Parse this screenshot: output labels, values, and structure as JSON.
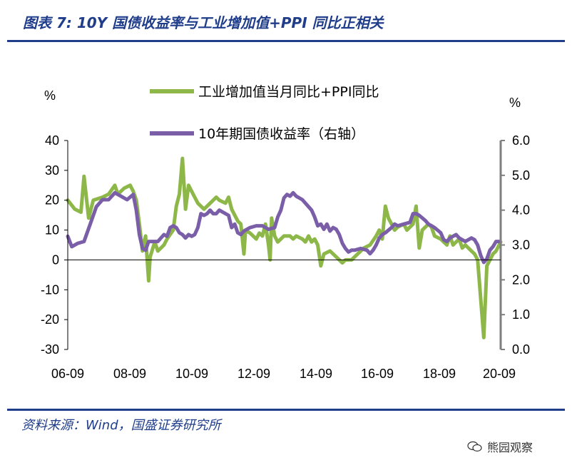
{
  "figure": {
    "title": "图表 7:  10Y 国债收益率与工业增加值+PPI 同比正相关",
    "source": "资料来源：Wind，国盛证券研究所",
    "watermark": "熊园观察",
    "watermark_icon": "wechat-logo-icon"
  },
  "chart_data": {
    "type": "line",
    "title": "",
    "left_axis": {
      "unit": "%",
      "min": -30,
      "max": 40,
      "ticks": [
        "40",
        "30",
        "20",
        "10",
        "0",
        "-10",
        "-20",
        "-30"
      ]
    },
    "right_axis": {
      "unit": "%",
      "min": 0.0,
      "max": 6.0,
      "ticks": [
        "6.0",
        "5.0",
        "4.0",
        "3.0",
        "2.0",
        "1.0",
        "0.0"
      ]
    },
    "x_ticks": [
      "06-09",
      "08-09",
      "10-09",
      "12-09",
      "14-09",
      "16-09",
      "18-09",
      "20-09"
    ],
    "legend_position": "top-center",
    "series": [
      {
        "name": "工业增加值当月同比+PPI同比",
        "axis": "left",
        "color": "#8db849",
        "points": [
          [
            2006.67,
            20
          ],
          [
            2006.9,
            17
          ],
          [
            2007.1,
            16
          ],
          [
            2007.2,
            28
          ],
          [
            2007.35,
            14
          ],
          [
            2007.5,
            20
          ],
          [
            2007.8,
            21
          ],
          [
            2008.0,
            22
          ],
          [
            2008.2,
            25
          ],
          [
            2008.3,
            22
          ],
          [
            2008.5,
            24
          ],
          [
            2008.7,
            25
          ],
          [
            2008.8,
            23
          ],
          [
            2008.9,
            20
          ],
          [
            2009.0,
            12
          ],
          [
            2009.1,
            3
          ],
          [
            2009.2,
            8
          ],
          [
            2009.3,
            -7
          ],
          [
            2009.35,
            1
          ],
          [
            2009.5,
            6
          ],
          [
            2009.6,
            3
          ],
          [
            2009.8,
            5
          ],
          [
            2009.9,
            7
          ],
          [
            2010.1,
            10
          ],
          [
            2010.2,
            18
          ],
          [
            2010.3,
            22
          ],
          [
            2010.4,
            34
          ],
          [
            2010.5,
            17
          ],
          [
            2010.6,
            25
          ],
          [
            2010.8,
            21
          ],
          [
            2010.9,
            19
          ],
          [
            2011.1,
            17
          ],
          [
            2011.3,
            19
          ],
          [
            2011.5,
            21
          ],
          [
            2011.6,
            20
          ],
          [
            2011.8,
            19
          ],
          [
            2011.9,
            21
          ],
          [
            2012.0,
            17
          ],
          [
            2012.2,
            13
          ],
          [
            2012.3,
            12
          ],
          [
            2012.4,
            2
          ],
          [
            2012.45,
            10
          ],
          [
            2012.6,
            9
          ],
          [
            2012.8,
            7
          ],
          [
            2012.9,
            9
          ],
          [
            2013.0,
            8
          ],
          [
            2013.1,
            12
          ],
          [
            2013.2,
            5
          ],
          [
            2013.25,
            0
          ],
          [
            2013.3,
            14
          ],
          [
            2013.4,
            8
          ],
          [
            2013.5,
            6
          ],
          [
            2013.7,
            8
          ],
          [
            2013.9,
            8
          ],
          [
            2014.0,
            7
          ],
          [
            2014.1,
            8
          ],
          [
            2014.3,
            7
          ],
          [
            2014.4,
            6
          ],
          [
            2014.5,
            8
          ],
          [
            2014.6,
            6
          ],
          [
            2014.7,
            7
          ],
          [
            2014.8,
            5
          ],
          [
            2014.9,
            -2
          ],
          [
            2015.0,
            2
          ],
          [
            2015.2,
            3
          ],
          [
            2015.4,
            1
          ],
          [
            2015.6,
            -1
          ],
          [
            2015.7,
            0
          ],
          [
            2015.9,
            0
          ],
          [
            2016.0,
            1
          ],
          [
            2016.1,
            2
          ],
          [
            2016.3,
            4
          ],
          [
            2016.5,
            5
          ],
          [
            2016.7,
            8
          ],
          [
            2016.8,
            10
          ],
          [
            2016.9,
            7
          ],
          [
            2017.0,
            18
          ],
          [
            2017.1,
            14
          ],
          [
            2017.2,
            12
          ],
          [
            2017.3,
            10
          ],
          [
            2017.4,
            11
          ],
          [
            2017.6,
            12
          ],
          [
            2017.7,
            10
          ],
          [
            2017.8,
            11
          ],
          [
            2017.9,
            12
          ],
          [
            2018.0,
            18
          ],
          [
            2018.1,
            4
          ],
          [
            2018.2,
            10
          ],
          [
            2018.4,
            12
          ],
          [
            2018.5,
            11
          ],
          [
            2018.6,
            8
          ],
          [
            2018.8,
            7
          ],
          [
            2018.9,
            6
          ],
          [
            2019.0,
            5
          ],
          [
            2019.1,
            8
          ],
          [
            2019.2,
            5
          ],
          [
            2019.4,
            7
          ],
          [
            2019.5,
            4
          ],
          [
            2019.6,
            5
          ],
          [
            2019.8,
            3
          ],
          [
            2019.9,
            2
          ],
          [
            2020.0,
            0
          ],
          [
            2020.1,
            -13
          ],
          [
            2020.2,
            -26
          ],
          [
            2020.3,
            -2
          ],
          [
            2020.5,
            2
          ],
          [
            2020.6,
            3
          ],
          [
            2020.7,
            5
          ],
          [
            2020.75,
            6
          ]
        ]
      },
      {
        "name": "10年期国债收益率（右轴）",
        "axis": "right",
        "color": "#7b5ea8",
        "points": [
          [
            2006.67,
            3.25
          ],
          [
            2006.8,
            2.95
          ],
          [
            2007.0,
            3.05
          ],
          [
            2007.2,
            3.1
          ],
          [
            2007.4,
            3.6
          ],
          [
            2007.6,
            4.1
          ],
          [
            2007.8,
            4.3
          ],
          [
            2008.0,
            4.3
          ],
          [
            2008.2,
            4.5
          ],
          [
            2008.4,
            4.4
          ],
          [
            2008.6,
            4.3
          ],
          [
            2008.8,
            4.45
          ],
          [
            2008.9,
            4.0
          ],
          [
            2009.0,
            3.3
          ],
          [
            2009.1,
            2.9
          ],
          [
            2009.2,
            2.85
          ],
          [
            2009.3,
            3.1
          ],
          [
            2009.4,
            3.1
          ],
          [
            2009.6,
            3.1
          ],
          [
            2009.8,
            3.3
          ],
          [
            2009.9,
            3.25
          ],
          [
            2010.0,
            3.5
          ],
          [
            2010.1,
            3.55
          ],
          [
            2010.2,
            3.5
          ],
          [
            2010.3,
            3.35
          ],
          [
            2010.4,
            3.3
          ],
          [
            2010.5,
            3.2
          ],
          [
            2010.6,
            3.3
          ],
          [
            2010.7,
            3.25
          ],
          [
            2010.8,
            3.3
          ],
          [
            2010.9,
            3.5
          ],
          [
            2011.0,
            3.9
          ],
          [
            2011.1,
            3.85
          ],
          [
            2011.2,
            3.9
          ],
          [
            2011.3,
            4.0
          ],
          [
            2011.4,
            3.9
          ],
          [
            2011.5,
            3.9
          ],
          [
            2011.6,
            4.0
          ],
          [
            2011.8,
            3.9
          ],
          [
            2011.9,
            3.85
          ],
          [
            2012.0,
            3.5
          ],
          [
            2012.1,
            3.6
          ],
          [
            2012.2,
            3.35
          ],
          [
            2012.3,
            3.3
          ],
          [
            2012.4,
            3.4
          ],
          [
            2012.6,
            3.5
          ],
          [
            2012.8,
            3.55
          ],
          [
            2012.9,
            3.55
          ],
          [
            2013.0,
            3.55
          ],
          [
            2013.2,
            3.45
          ],
          [
            2013.4,
            3.5
          ],
          [
            2013.5,
            3.8
          ],
          [
            2013.6,
            4.0
          ],
          [
            2013.7,
            4.35
          ],
          [
            2013.8,
            4.45
          ],
          [
            2013.9,
            4.4
          ],
          [
            2014.0,
            4.5
          ],
          [
            2014.1,
            4.4
          ],
          [
            2014.3,
            4.3
          ],
          [
            2014.4,
            4.2
          ],
          [
            2014.5,
            4.1
          ],
          [
            2014.6,
            4.0
          ],
          [
            2014.7,
            3.8
          ],
          [
            2014.8,
            3.55
          ],
          [
            2014.9,
            3.6
          ],
          [
            2015.0,
            3.45
          ],
          [
            2015.1,
            3.6
          ],
          [
            2015.2,
            3.4
          ],
          [
            2015.3,
            3.5
          ],
          [
            2015.4,
            3.45
          ],
          [
            2015.5,
            3.3
          ],
          [
            2015.6,
            3.05
          ],
          [
            2015.7,
            2.9
          ],
          [
            2015.8,
            2.8
          ],
          [
            2015.9,
            2.85
          ],
          [
            2016.0,
            2.85
          ],
          [
            2016.2,
            2.9
          ],
          [
            2016.4,
            2.85
          ],
          [
            2016.5,
            2.75
          ],
          [
            2016.6,
            2.85
          ],
          [
            2016.7,
            3.0
          ],
          [
            2016.8,
            3.2
          ],
          [
            2016.9,
            3.3
          ],
          [
            2017.0,
            3.35
          ],
          [
            2017.2,
            3.5
          ],
          [
            2017.3,
            3.6
          ],
          [
            2017.4,
            3.55
          ],
          [
            2017.6,
            3.6
          ],
          [
            2017.8,
            3.65
          ],
          [
            2017.9,
            3.9
          ],
          [
            2018.0,
            3.9
          ],
          [
            2018.1,
            3.85
          ],
          [
            2018.3,
            3.7
          ],
          [
            2018.4,
            3.6
          ],
          [
            2018.5,
            3.55
          ],
          [
            2018.6,
            3.5
          ],
          [
            2018.8,
            3.35
          ],
          [
            2018.9,
            3.15
          ],
          [
            2019.0,
            3.1
          ],
          [
            2019.1,
            3.2
          ],
          [
            2019.3,
            3.3
          ],
          [
            2019.4,
            3.2
          ],
          [
            2019.5,
            3.15
          ],
          [
            2019.6,
            3.1
          ],
          [
            2019.8,
            3.2
          ],
          [
            2019.9,
            3.15
          ],
          [
            2020.0,
            3.0
          ],
          [
            2020.1,
            2.7
          ],
          [
            2020.2,
            2.5
          ],
          [
            2020.3,
            2.6
          ],
          [
            2020.4,
            2.85
          ],
          [
            2020.5,
            2.95
          ],
          [
            2020.6,
            3.1
          ],
          [
            2020.7,
            3.1
          ]
        ]
      }
    ]
  }
}
